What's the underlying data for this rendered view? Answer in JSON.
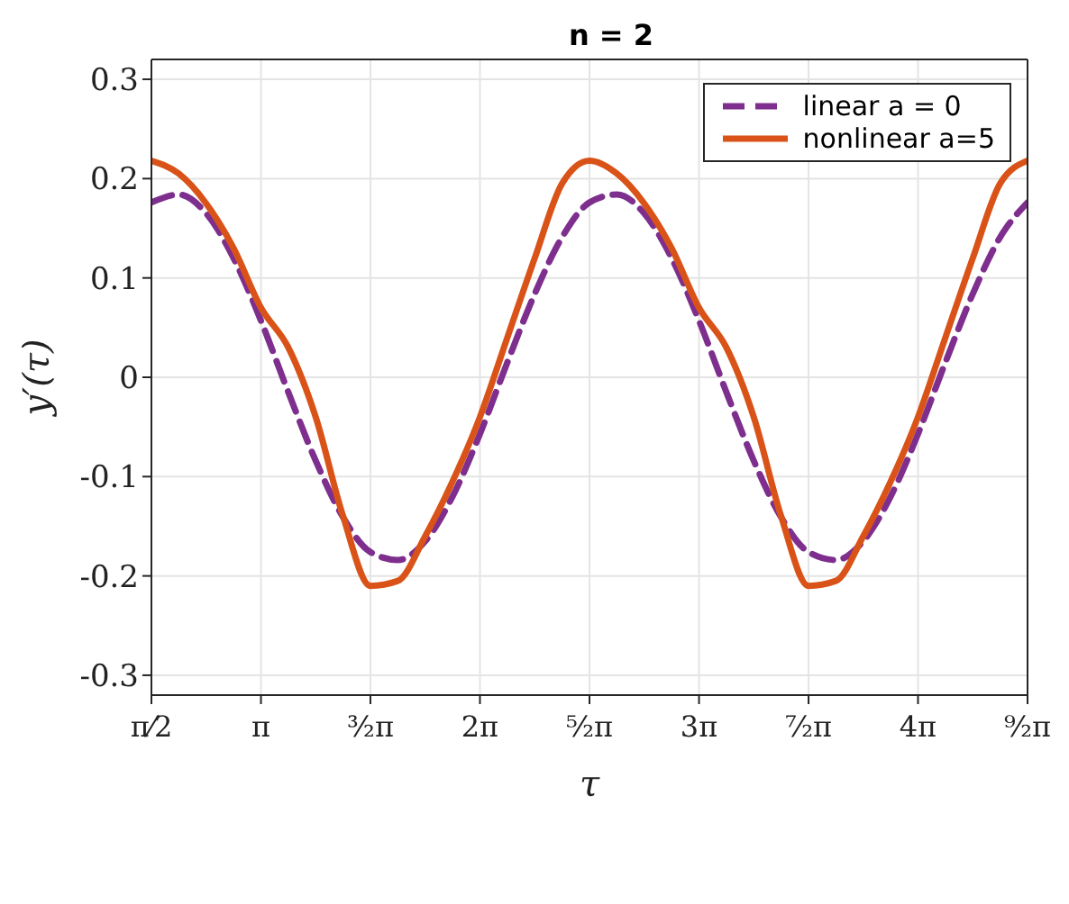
{
  "chart_data": {
    "type": "line",
    "title": "n = 2",
    "xlabel": "τ",
    "ylabel": "y′(τ)",
    "x": [
      1.571,
      1.963,
      2.356,
      2.749,
      3.142,
      3.534,
      3.927,
      4.32,
      4.712,
      5.105,
      5.498,
      5.89,
      6.283,
      6.676,
      7.069,
      7.461,
      7.854,
      8.247,
      8.639,
      9.032,
      9.425,
      9.817,
      10.21,
      10.603,
      10.996,
      11.388,
      11.781,
      12.174,
      12.566,
      12.959,
      13.352,
      13.744,
      14.137
    ],
    "series": [
      {
        "name": "linear a = 0",
        "color": "#7e2f8e",
        "line_style": "dashed",
        "values": [
          0.176,
          0.184,
          0.165,
          0.12,
          0.057,
          -0.015,
          -0.084,
          -0.141,
          -0.176,
          -0.184,
          -0.165,
          -0.12,
          -0.057,
          0.015,
          0.084,
          0.141,
          0.176,
          0.184,
          0.165,
          0.12,
          0.057,
          -0.015,
          -0.084,
          -0.141,
          -0.176,
          -0.184,
          -0.165,
          -0.12,
          -0.057,
          0.015,
          0.084,
          0.141,
          0.176
        ]
      },
      {
        "name": "nonlinear a=5",
        "color": "#d95319",
        "line_style": "solid",
        "values": [
          0.218,
          0.205,
          0.175,
          0.13,
          0.07,
          0.03,
          -0.04,
          -0.14,
          -0.21,
          -0.205,
          -0.16,
          -0.105,
          -0.04,
          0.04,
          0.12,
          0.195,
          0.218,
          0.205,
          0.175,
          0.13,
          0.07,
          0.03,
          -0.04,
          -0.14,
          -0.21,
          -0.205,
          -0.16,
          -0.105,
          -0.04,
          0.04,
          0.12,
          0.195,
          0.218
        ]
      }
    ],
    "xlim": [
      1.571,
      14.137
    ],
    "xticks": [
      {
        "value": 1.571,
        "label": "π⁄2"
      },
      {
        "value": 3.142,
        "label": "π"
      },
      {
        "value": 4.712,
        "label": "³⁄₂π"
      },
      {
        "value": 6.283,
        "label": "2π"
      },
      {
        "value": 7.854,
        "label": "⁵⁄₂π"
      },
      {
        "value": 9.425,
        "label": "3π"
      },
      {
        "value": 10.996,
        "label": "⁷⁄₂π"
      },
      {
        "value": 12.566,
        "label": "4π"
      },
      {
        "value": 14.137,
        "label": "⁹⁄₂π"
      }
    ],
    "ylim": [
      -0.32,
      0.32
    ],
    "yticks": [
      -0.3,
      -0.2,
      -0.1,
      0,
      0.1,
      0.2,
      0.3
    ],
    "grid": true,
    "legend": "top right",
    "marker": "none"
  }
}
